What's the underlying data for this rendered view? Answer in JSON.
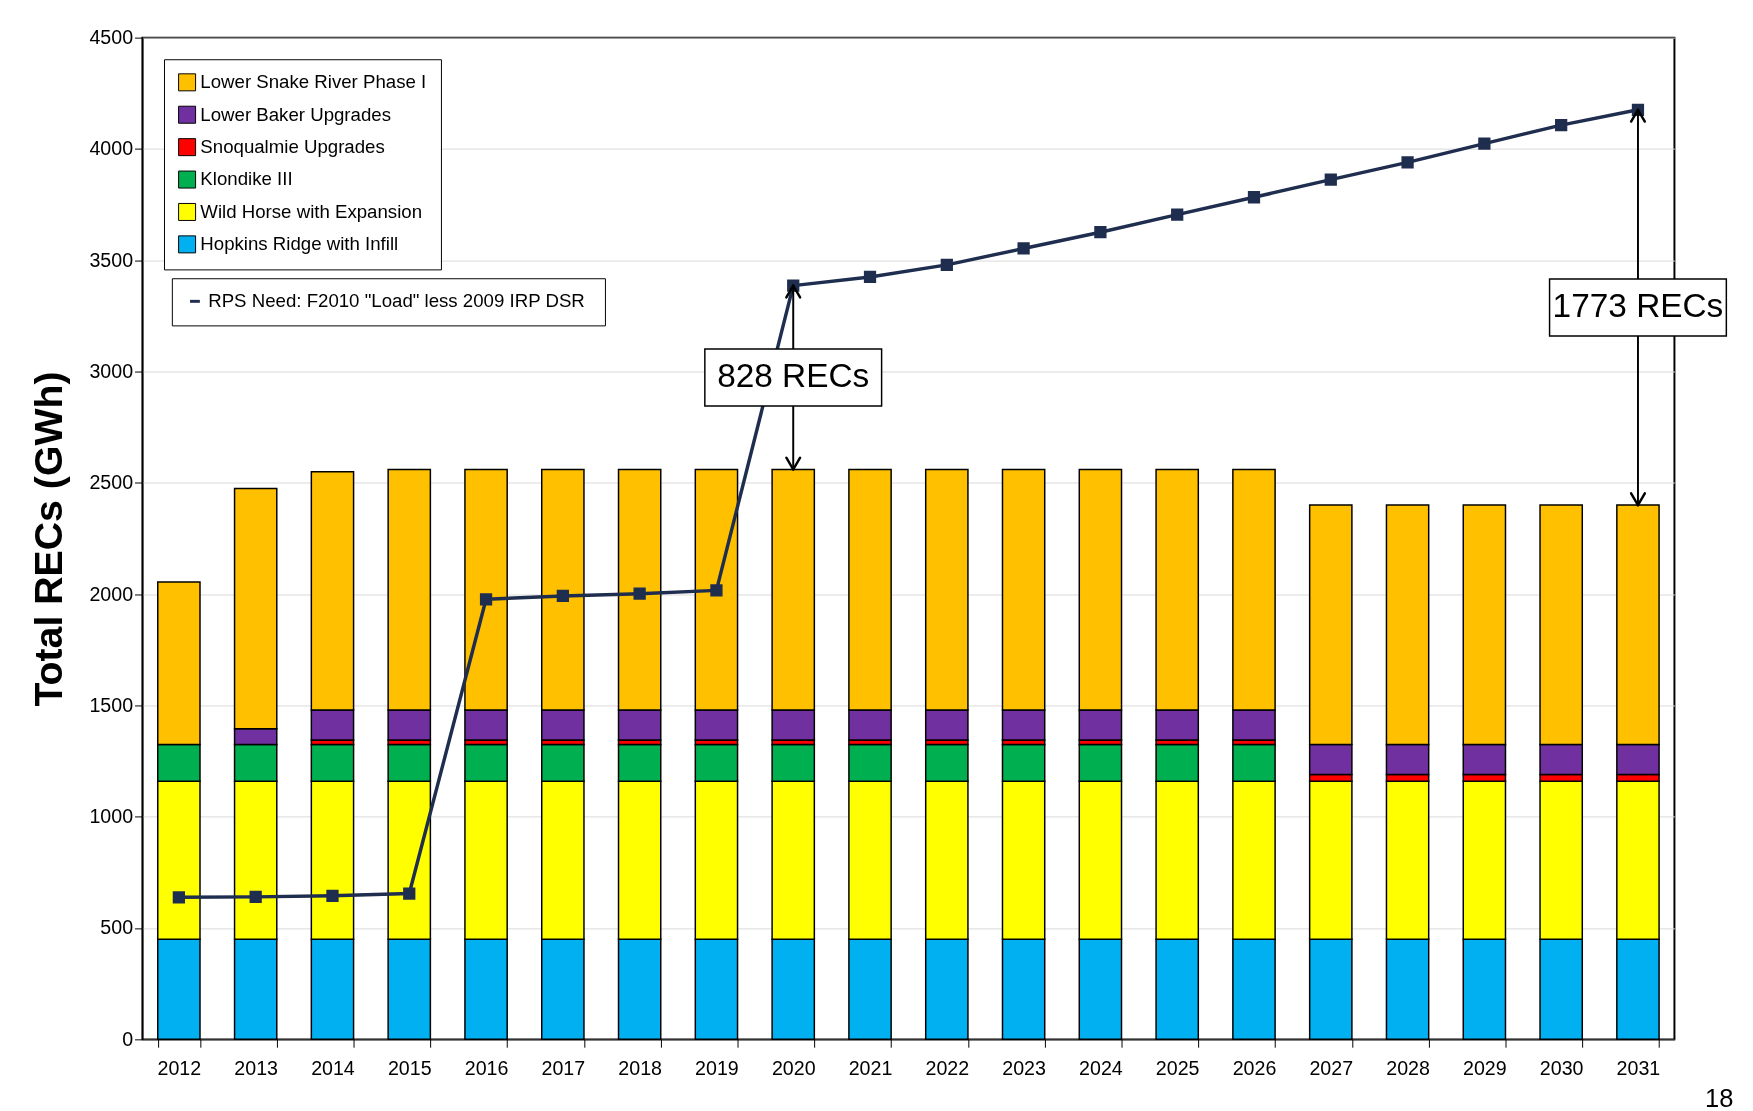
{
  "chart_data": {
    "type": "bar",
    "stacked": true,
    "ylabel": "Total RECs (GWh)",
    "categories": [
      "2012",
      "2013",
      "2014",
      "2015",
      "2016",
      "2017",
      "2018",
      "2019",
      "2020",
      "2021",
      "2022",
      "2023",
      "2024",
      "2025",
      "2026",
      "2027",
      "2028",
      "2029",
      "2030",
      "2031"
    ],
    "series": [
      {
        "name": "Hopkins Ridge with Infill",
        "color": "#00b0f0",
        "values": [
          450,
          450,
          450,
          450,
          450,
          450,
          450,
          450,
          450,
          450,
          450,
          450,
          450,
          450,
          450,
          450,
          450,
          450,
          450,
          450
        ]
      },
      {
        "name": "Wild Horse with Expansion",
        "color": "#ffff00",
        "values": [
          710,
          710,
          710,
          710,
          710,
          710,
          710,
          710,
          710,
          710,
          710,
          710,
          710,
          710,
          710,
          710,
          710,
          710,
          710,
          710
        ]
      },
      {
        "name": "Klondike III",
        "color": "#00b050",
        "values": [
          165,
          165,
          165,
          165,
          165,
          165,
          165,
          165,
          165,
          165,
          165,
          165,
          165,
          165,
          165,
          null,
          null,
          null,
          null,
          null
        ]
      },
      {
        "name": "Snoqualmie Upgrades",
        "color": "#ff0000",
        "values": [
          null,
          null,
          20,
          20,
          20,
          20,
          20,
          20,
          20,
          20,
          20,
          20,
          20,
          20,
          20,
          30,
          30,
          30,
          30,
          30
        ]
      },
      {
        "name": "Lower Baker Upgrades",
        "color": "#7030a0",
        "values": [
          null,
          70,
          135,
          135,
          135,
          135,
          135,
          135,
          135,
          135,
          135,
          135,
          135,
          135,
          135,
          135,
          135,
          135,
          135,
          135
        ]
      },
      {
        "name": "Lower Snake River Phase I",
        "color": "#ffc000",
        "values": [
          730,
          1080,
          1070,
          1080,
          1080,
          1080,
          1080,
          1080,
          1080,
          1080,
          1080,
          1080,
          1080,
          1080,
          1080,
          1075,
          1075,
          1075,
          1075,
          1075
        ]
      },
      {
        "name": "RPS Need: F2010  \"Load\" less 2009 IRP DSR",
        "color": "#1f2d4e",
        "type": "line",
        "marker": "square",
        "values": [
          638,
          640,
          645,
          655,
          1977,
          1992,
          2002,
          2017,
          3386,
          3425,
          3479,
          3553,
          3626,
          3705,
          3783,
          3862,
          3940,
          4024,
          4107,
          4176
        ]
      }
    ],
    "ylim": [
      0,
      4500
    ],
    "yticks": [
      0,
      500,
      1000,
      1500,
      2000,
      2500,
      3000,
      3500,
      4000,
      4500
    ],
    "grid": "y",
    "legend": "top left",
    "annotations": [
      {
        "text": "828 RECs",
        "x": "2020",
        "y": 3386
      },
      {
        "text": "1773 RECs",
        "x": "2031",
        "y": 4176
      },
      "18"
    ]
  }
}
